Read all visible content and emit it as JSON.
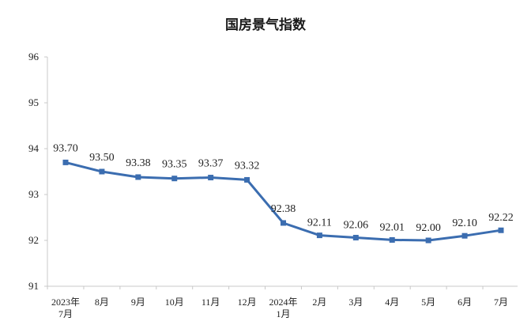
{
  "colors": {
    "line": "#3B6DB0",
    "axis": "#c8c8c8",
    "background": "#ffffff",
    "text": "#222222"
  },
  "chart_data": {
    "type": "line",
    "title": "国房景气指数",
    "xlabel": "",
    "ylabel": "",
    "ylim": [
      91,
      96
    ],
    "yticks": [
      "91",
      "92",
      "93",
      "94",
      "95",
      "96"
    ],
    "grid": false,
    "legend": "none",
    "categories": [
      [
        "2023年",
        "7月"
      ],
      [
        "8月"
      ],
      [
        "9月"
      ],
      [
        "10月"
      ],
      [
        "11月"
      ],
      [
        "12月"
      ],
      [
        "2024年",
        "1月"
      ],
      [
        "2月"
      ],
      [
        "3月"
      ],
      [
        "4月"
      ],
      [
        "5月"
      ],
      [
        "6月"
      ],
      [
        "7月"
      ]
    ],
    "series": [
      {
        "values": [
          93.7,
          93.5,
          93.38,
          93.35,
          93.37,
          93.32,
          92.38,
          92.11,
          92.06,
          92.01,
          92.0,
          92.1,
          92.22
        ],
        "labels": [
          "93.70",
          "93.50",
          "93.38",
          "93.35",
          "93.37",
          "93.32",
          "92.38",
          "92.11",
          "92.06",
          "92.01",
          "92.00",
          "92.10",
          "92.22"
        ]
      }
    ]
  }
}
